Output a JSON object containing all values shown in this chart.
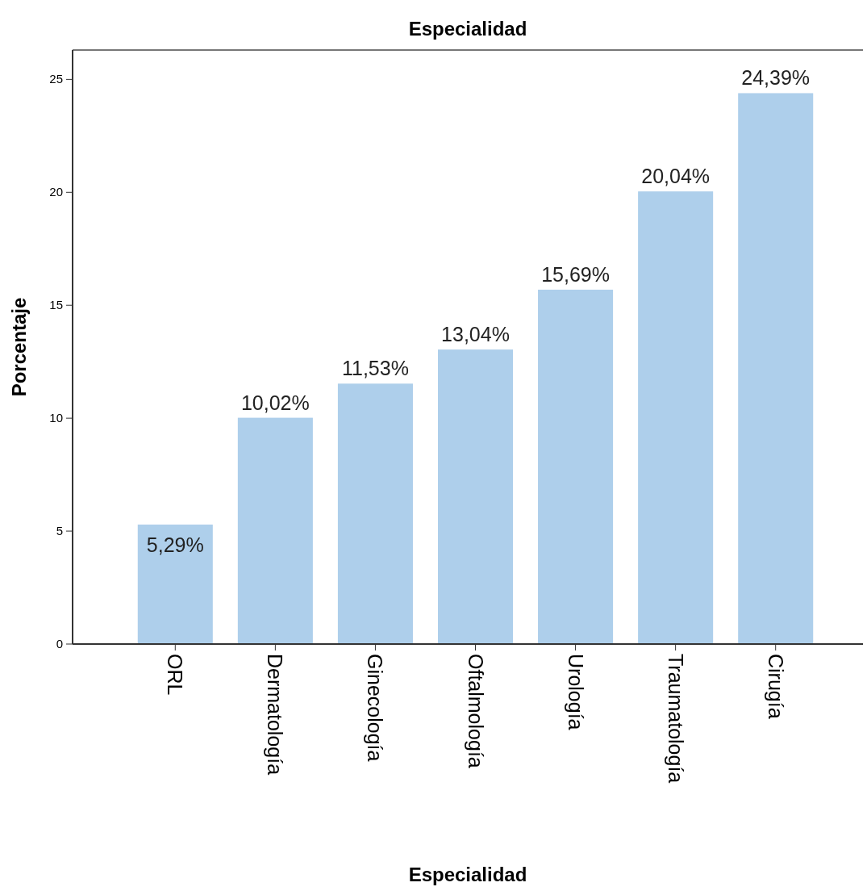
{
  "chart_data": {
    "type": "bar",
    "title": "Especialidad",
    "xlabel": "Especialidad",
    "ylabel": "Porcentaje",
    "categories": [
      "ORL",
      "Dermatología",
      "Ginecología",
      "Oftalmología",
      "Urología",
      "Traumatología",
      "Cirugía"
    ],
    "values": [
      5.29,
      10.02,
      11.53,
      13.04,
      15.69,
      20.04,
      24.39
    ],
    "value_labels": [
      "5,29%",
      "10,02%",
      "11,53%",
      "13,04%",
      "15,69%",
      "20,04%",
      "24,39%"
    ],
    "color": "#aecfeb",
    "ylim": [
      0,
      26.3
    ],
    "yticks": [
      0,
      5,
      10,
      15,
      20,
      25
    ],
    "grid": false
  }
}
